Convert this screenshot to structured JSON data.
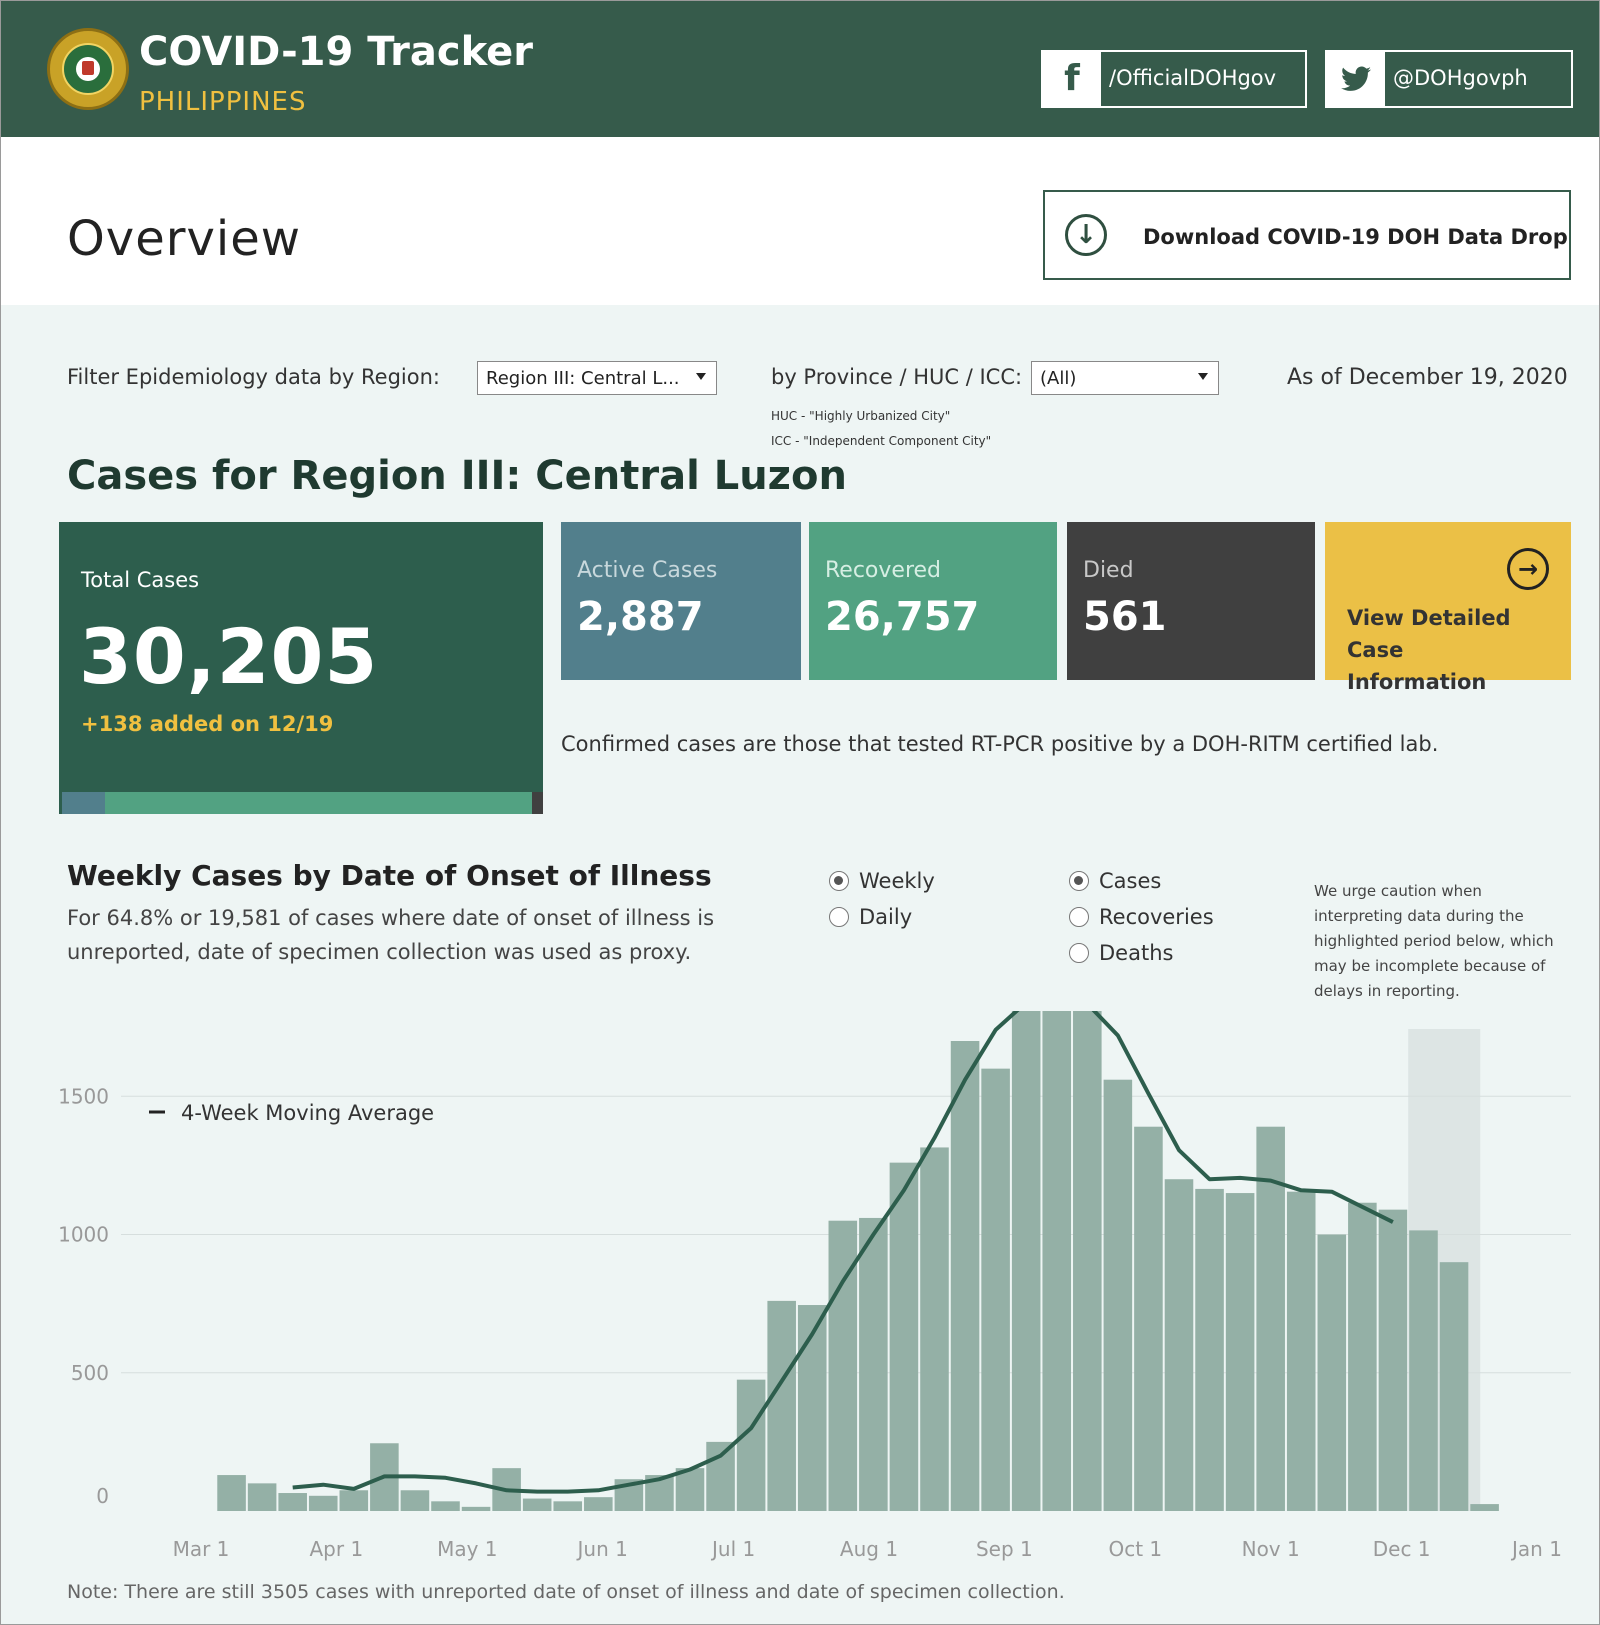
{
  "header": {
    "title": "COVID-19 Tracker",
    "subtitle": "PHILIPPINES",
    "facebook_label": "/OfficialDOHgov",
    "twitter_label": "@DOHgovph",
    "seal_text": "REPUBLIC OF THE PHILIPPINES · DEPARTMENT OF HEALTH"
  },
  "page": {
    "title": "Overview",
    "download_label": "Download COVID-19 DOH Data Drop"
  },
  "filters": {
    "region_label": "Filter Epidemiology data by Region:",
    "region_value": "Region III: Central L...",
    "province_label": "by Province / HUC / ICC:",
    "province_value": "(All)",
    "huc_note": "HUC - \"Highly Urbanized City\"",
    "icc_note": "ICC - \"Independent Component City\"",
    "as_of": "As of December 19, 2020"
  },
  "cases": {
    "heading": "Cases for Region III: Central Luzon",
    "total_label": "Total Cases",
    "total_value": "30,205",
    "added": "+138 added on 12/19",
    "active_label": "Active Cases",
    "active_value": "2,887",
    "recovered_label": "Recovered",
    "recovered_value": "26,757",
    "died_label": "Died",
    "died_value": "561",
    "detail_label": "View Detailed Case Information",
    "confirmed_note": "Confirmed cases are those that tested RT-PCR positive by a DOH-RITM certified lab.",
    "breakdown": {
      "active": 2887,
      "recovered": 26757,
      "died": 561
    }
  },
  "chart_section": {
    "title": "Weekly Cases by Date of Onset of Illness",
    "subtitle": "For 64.8% or 19,581 of cases where date of onset of illness is unreported, date of specimen collection was used as proxy.",
    "period_options": [
      "Weekly",
      "Daily"
    ],
    "period_selected": "Weekly",
    "measure_options": [
      "Cases",
      "Recoveries",
      "Deaths"
    ],
    "measure_selected": "Cases",
    "caution": "We urge caution when interpreting data during the highlighted period below, which may be incomplete because of delays in reporting.",
    "note": "Note: There are still 3505 cases with unreported date of onset of illness and date of specimen collection."
  },
  "colors": {
    "header_bg": "#365b4b",
    "accent_yellow": "#f0c040",
    "total_card": "#2d5e4d",
    "active": "#527f8c",
    "recovered": "#52a282",
    "died": "#404040",
    "detail": "#ebc046",
    "bar": "#94b0a6",
    "line": "#2d5e4d",
    "highlight": "#dde5e4"
  },
  "chart_data": {
    "type": "bar",
    "x_tick_labels": [
      "Mar 1",
      "Apr 1",
      "May 1",
      "Jun 1",
      "Jul 1",
      "Aug 1",
      "Sep 1",
      "Oct 1",
      "Nov 1",
      "Dec 1",
      "Jan 1"
    ],
    "y_ticks": [
      0,
      500,
      1000,
      1500
    ],
    "ylim": [
      0,
      1700
    ],
    "grid": true,
    "legend": {
      "label": "4-Week Moving Average",
      "placement": "top-left"
    },
    "highlight_period": [
      "2020-12-06",
      "2020-12-19"
    ],
    "x": [
      "2020-03-08",
      "2020-03-15",
      "2020-03-22",
      "2020-03-29",
      "2020-04-05",
      "2020-04-12",
      "2020-04-19",
      "2020-04-26",
      "2020-05-03",
      "2020-05-10",
      "2020-05-17",
      "2020-05-24",
      "2020-05-31",
      "2020-06-07",
      "2020-06-14",
      "2020-06-21",
      "2020-06-28",
      "2020-07-05",
      "2020-07-12",
      "2020-07-19",
      "2020-07-26",
      "2020-08-02",
      "2020-08-09",
      "2020-08-16",
      "2020-08-23",
      "2020-08-30",
      "2020-09-06",
      "2020-09-13",
      "2020-09-20",
      "2020-09-27",
      "2020-10-04",
      "2020-10-11",
      "2020-10-18",
      "2020-10-25",
      "2020-11-01",
      "2020-11-08",
      "2020-11-15",
      "2020-11-22",
      "2020-11-29",
      "2020-12-06",
      "2020-12-13",
      "2020-12-20"
    ],
    "series": [
      {
        "name": "Cases",
        "values": [
          130,
          100,
          65,
          55,
          75,
          245,
          75,
          35,
          15,
          155,
          45,
          35,
          50,
          115,
          130,
          155,
          250,
          475,
          760,
          745,
          1050,
          1060,
          1260,
          1315,
          1700,
          1600,
          1880,
          1855,
          1840,
          1560,
          1390,
          1200,
          1165,
          1150,
          1390,
          1155,
          1000,
          1115,
          1090,
          1015,
          900,
          25
        ]
      },
      {
        "name": "4-Week Moving Average",
        "values": [
          null,
          null,
          85,
          95,
          80,
          125,
          125,
          120,
          100,
          75,
          70,
          70,
          75,
          95,
          115,
          150,
          200,
          300,
          470,
          640,
          830,
          1000,
          1160,
          1350,
          1560,
          1740,
          1840,
          1860,
          1835,
          1720,
          1510,
          1305,
          1200,
          1205,
          1195,
          1160,
          1155,
          1100,
          1045,
          null,
          null,
          null
        ]
      }
    ]
  }
}
